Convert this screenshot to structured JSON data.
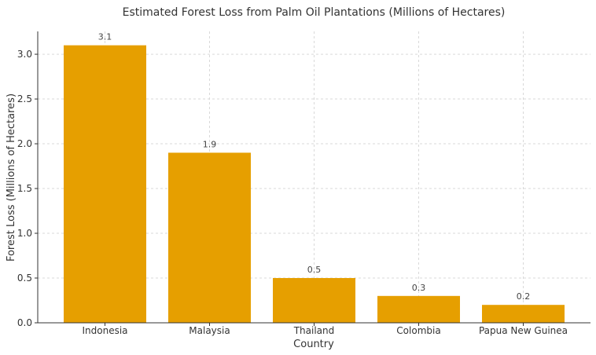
{
  "chart_data": {
    "type": "bar",
    "title": "Estimated Forest Loss from Palm Oil Plantations (Millions of Hectares)",
    "xlabel": "Country",
    "ylabel": "Forest Loss (Millions of Hectares)",
    "categories": [
      "Indonesia",
      "Malaysia",
      "Thailand",
      "Colombia",
      "Papua New Guinea"
    ],
    "values": [
      3.1,
      1.9,
      0.5,
      0.3,
      0.2
    ],
    "data_labels": [
      "3.1",
      "1.9",
      "0.5",
      "0.3",
      "0.2"
    ],
    "ylim": [
      0,
      3.255
    ],
    "yticks": [
      0.0,
      0.5,
      1.0,
      1.5,
      2.0,
      2.5,
      3.0
    ],
    "ytick_labels": [
      "0.0",
      "0.5",
      "1.0",
      "1.5",
      "2.0",
      "2.5",
      "3.0"
    ],
    "grid": true,
    "bar_color": "#E69F00",
    "grid_color": "#d9d9d9",
    "axis_color": "#333333"
  }
}
